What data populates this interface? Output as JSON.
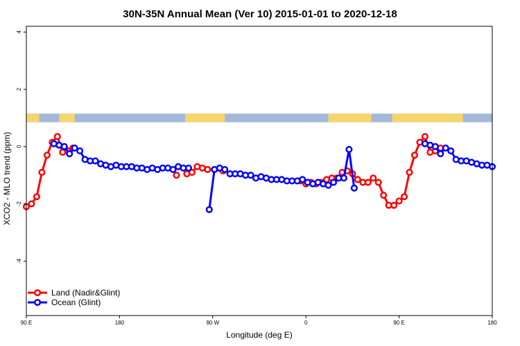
{
  "chart_data": {
    "type": "line",
    "title": "30N-35N Annual Mean (Ver 10)   2015-01-01 to 2020-12-18",
    "xlabel": "Longitude (deg E)",
    "ylabel": "XCO2 - MLO trend (ppm)",
    "xlim": [
      -90,
      180
    ],
    "ylim": [
      -5.9,
      4.2
    ],
    "x_ticks": [
      {
        "value": -90,
        "label": "90 E"
      },
      {
        "value": -36,
        "label": "180"
      },
      {
        "value": 18,
        "label": "90 W"
      },
      {
        "value": 72,
        "label": "0"
      },
      {
        "value": 126,
        "label": "90 E"
      },
      {
        "value": 180,
        "label": "180"
      }
    ],
    "y_ticks": [
      -4,
      -2,
      0,
      2,
      4
    ],
    "grid": false,
    "legend_position": "bottom-left",
    "land_band": {
      "y_range": [
        0.85,
        1.15
      ],
      "ocean_color": "#A4B8D8",
      "land_color": "#F5D56E",
      "land_segments": [
        [
          -90,
          -82.5
        ],
        [
          -71,
          -62
        ],
        [
          2,
          25
        ],
        [
          85,
          110
        ],
        [
          122,
          163
        ]
      ]
    },
    "series": [
      {
        "name": "Land (Nadir&Glint)",
        "color": "#FF0000",
        "segments": [
          [
            [
              -90,
              -2.1
            ],
            [
              -87,
              -2.0
            ],
            [
              -84,
              -1.75
            ],
            [
              -81,
              -0.9
            ],
            [
              -78,
              -0.3
            ],
            [
              -75,
              0.15
            ],
            [
              -72,
              0.35
            ],
            [
              -69,
              -0.2
            ],
            [
              -66,
              -0.15
            ],
            [
              -63,
              -0.05
            ]
          ],
          [
            [
              -3,
              -1.0
            ]
          ],
          [
            [
              3,
              -0.95
            ],
            [
              6,
              -0.9
            ],
            [
              9,
              -0.7
            ],
            [
              12,
              -0.75
            ],
            [
              15,
              -0.8
            ],
            [
              24,
              -0.85
            ]
          ],
          [
            [
              69,
              -1.2
            ],
            [
              72,
              -1.3
            ],
            [
              75,
              -1.25
            ],
            [
              78,
              -1.3
            ],
            [
              81,
              -1.25
            ],
            [
              84,
              -1.15
            ],
            [
              87,
              -1.1
            ],
            [
              90,
              -1.1
            ],
            [
              93,
              -0.9
            ],
            [
              96,
              -0.85
            ],
            [
              99,
              -0.95
            ],
            [
              102,
              -1.15
            ],
            [
              105,
              -1.25
            ],
            [
              108,
              -1.25
            ],
            [
              111,
              -1.1
            ],
            [
              114,
              -1.25
            ],
            [
              117,
              -1.7
            ],
            [
              120,
              -2.05
            ],
            [
              123,
              -2.05
            ],
            [
              126,
              -1.9
            ],
            [
              129,
              -1.75
            ],
            [
              132,
              -0.9
            ],
            [
              135,
              -0.3
            ],
            [
              138,
              0.15
            ],
            [
              141,
              0.35
            ],
            [
              144,
              -0.2
            ],
            [
              147,
              -0.15
            ],
            [
              150,
              -0.05
            ]
          ]
        ]
      },
      {
        "name": "Ocean (Glint)",
        "color": "#0000FF",
        "segments": [
          [
            [
              -74,
              0.1
            ],
            [
              -71,
              0.05
            ],
            [
              -68,
              0.0
            ],
            [
              -65,
              -0.25
            ],
            [
              -62,
              -0.05
            ],
            [
              -59,
              -0.15
            ],
            [
              -56,
              -0.45
            ],
            [
              -53,
              -0.5
            ],
            [
              -50,
              -0.5
            ],
            [
              -47,
              -0.6
            ],
            [
              -44,
              -0.65
            ],
            [
              -41,
              -0.7
            ],
            [
              -38,
              -0.65
            ],
            [
              -35,
              -0.7
            ],
            [
              -32,
              -0.7
            ],
            [
              -29,
              -0.7
            ],
            [
              -26,
              -0.75
            ],
            [
              -23,
              -0.75
            ],
            [
              -20,
              -0.8
            ],
            [
              -17,
              -0.75
            ],
            [
              -14,
              -0.8
            ],
            [
              -11,
              -0.75
            ],
            [
              -8,
              -0.75
            ],
            [
              -5,
              -0.8
            ],
            [
              -2,
              -0.7
            ],
            [
              1,
              -0.75
            ],
            [
              4,
              -0.75
            ]
          ],
          [
            [
              16,
              -2.2
            ],
            [
              19,
              -0.8
            ]
          ],
          [
            [
              22,
              -0.75
            ],
            [
              25,
              -0.8
            ],
            [
              28,
              -0.95
            ],
            [
              31,
              -0.95
            ],
            [
              34,
              -0.95
            ],
            [
              37,
              -1.0
            ],
            [
              40,
              -1.0
            ],
            [
              43,
              -1.1
            ],
            [
              46,
              -1.05
            ],
            [
              49,
              -1.1
            ],
            [
              52,
              -1.15
            ],
            [
              55,
              -1.15
            ],
            [
              58,
              -1.15
            ],
            [
              61,
              -1.2
            ],
            [
              64,
              -1.2
            ],
            [
              67,
              -1.2
            ],
            [
              70,
              -1.15
            ],
            [
              73,
              -1.25
            ],
            [
              76,
              -1.3
            ],
            [
              79,
              -1.25
            ],
            [
              82,
              -1.3
            ],
            [
              85,
              -1.35
            ],
            [
              88,
              -1.25
            ],
            [
              91,
              -1.1
            ],
            [
              94,
              -1.1
            ],
            [
              97,
              -0.1
            ],
            [
              100,
              -1.45
            ]
          ],
          [
            [
              141,
              0.1
            ],
            [
              144,
              0.05
            ],
            [
              147,
              0.0
            ],
            [
              150,
              -0.25
            ],
            [
              153,
              -0.05
            ],
            [
              156,
              -0.15
            ],
            [
              159,
              -0.45
            ],
            [
              162,
              -0.5
            ],
            [
              165,
              -0.5
            ],
            [
              168,
              -0.55
            ],
            [
              171,
              -0.6
            ],
            [
              174,
              -0.65
            ],
            [
              177,
              -0.65
            ],
            [
              180,
              -0.7
            ]
          ]
        ]
      }
    ]
  }
}
